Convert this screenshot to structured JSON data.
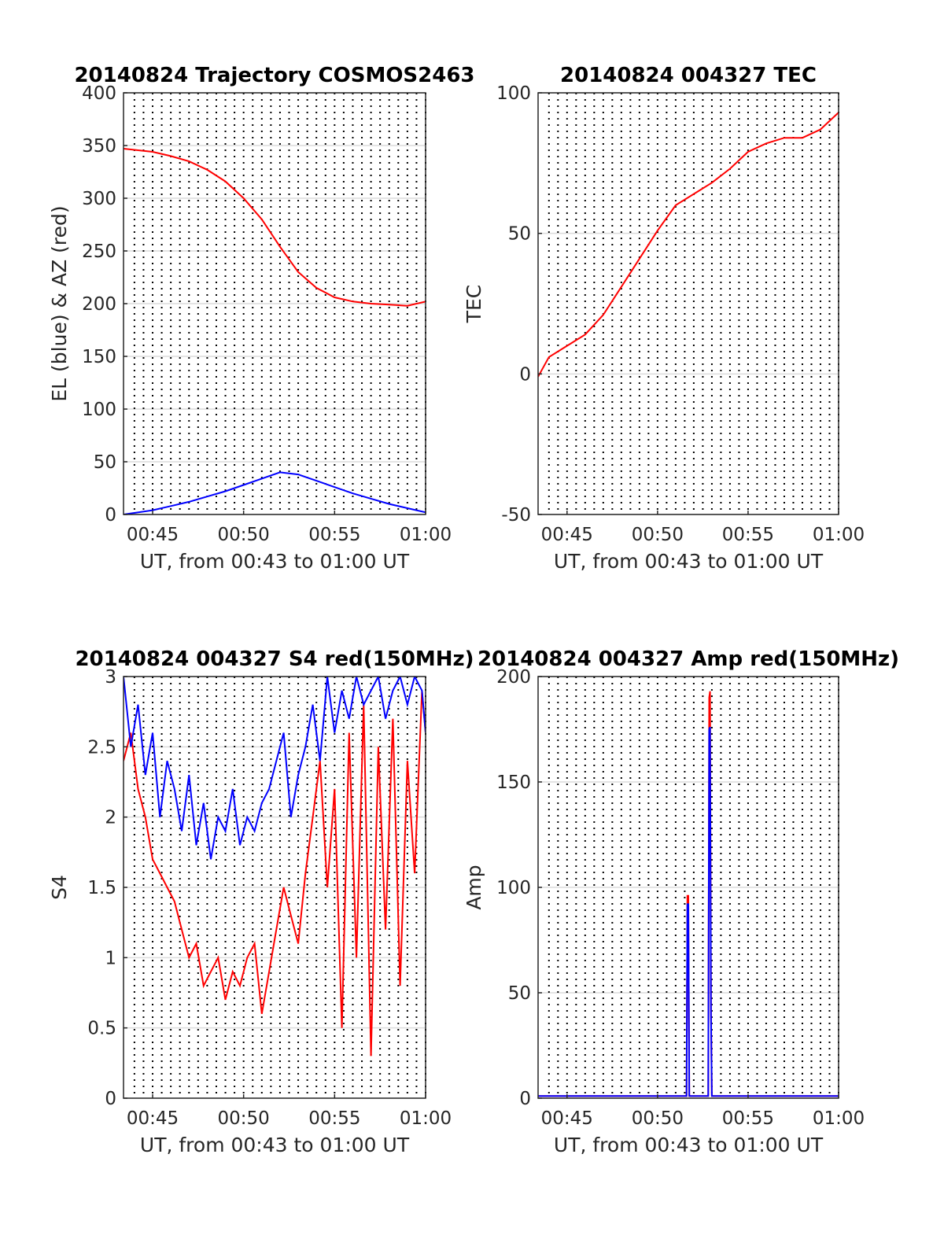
{
  "chart_data": [
    {
      "type": "line",
      "title": "20140824 Trajectory COSMOS2463",
      "xlabel": "UT, from 00:43 to 01:00 UT",
      "ylabel": "EL (blue) & AZ (red)",
      "xlim": [
        43.4,
        60.0
      ],
      "ylim": [
        0,
        400
      ],
      "xticks": [
        45,
        50,
        55,
        60
      ],
      "xtick_labels": [
        "00:45",
        "00:50",
        "00:55",
        "01:00"
      ],
      "yticks": [
        0,
        50,
        100,
        150,
        200,
        250,
        300,
        350,
        400
      ],
      "ytick_labels": [
        "0",
        "50",
        "100",
        "150",
        "200",
        "250",
        "300",
        "350",
        "400"
      ],
      "grid": true,
      "series": [
        {
          "color": "#ff0000",
          "x": [
            43.4,
            45,
            46,
            47,
            48,
            49,
            50,
            51,
            52,
            53,
            54,
            55,
            56,
            57,
            58,
            59,
            60
          ],
          "y": [
            347,
            344,
            340,
            335,
            327,
            316,
            300,
            280,
            254,
            230,
            215,
            206,
            202,
            200,
            199,
            198,
            202
          ]
        },
        {
          "color": "#0000ff",
          "x": [
            43.4,
            45,
            46,
            47,
            48,
            49,
            50,
            51,
            52,
            53,
            54,
            55,
            56,
            57,
            58,
            59,
            60
          ],
          "y": [
            0,
            4,
            8,
            12,
            17,
            22,
            28,
            34,
            40,
            38,
            32,
            26,
            20,
            15,
            10,
            6,
            2
          ]
        }
      ]
    },
    {
      "type": "line",
      "title": "20140824 004327 TEC",
      "xlabel": "UT, from 00:43 to 01:00 UT",
      "ylabel": "TEC",
      "xlim": [
        43.4,
        60.0
      ],
      "ylim": [
        -50,
        100
      ],
      "xticks": [
        45,
        50,
        55,
        60
      ],
      "xtick_labels": [
        "00:45",
        "00:50",
        "00:55",
        "01:00"
      ],
      "yticks": [
        -50,
        0,
        50,
        100
      ],
      "ytick_labels": [
        "-50",
        "0",
        "50",
        "100"
      ],
      "grid": true,
      "series": [
        {
          "color": "#ff0000",
          "x": [
            43.4,
            44,
            45,
            46,
            47,
            48,
            49,
            50,
            51,
            52,
            53,
            54,
            55,
            56,
            57,
            58,
            59,
            60
          ],
          "y": [
            -1,
            6,
            10,
            14,
            21,
            31,
            41,
            51,
            60,
            64,
            68,
            73,
            79,
            82,
            84,
            84,
            87,
            93
          ]
        }
      ]
    },
    {
      "type": "line",
      "title": "20140824 004327 S4 red(150MHz)",
      "xlabel": "UT, from 00:43 to 01:00 UT",
      "ylabel": "S4",
      "xlim": [
        43.4,
        60.0
      ],
      "ylim": [
        0,
        3
      ],
      "xticks": [
        45,
        50,
        55,
        60
      ],
      "xtick_labels": [
        "00:45",
        "00:50",
        "00:55",
        "01:00"
      ],
      "yticks": [
        0,
        0.5,
        1,
        1.5,
        2,
        2.5,
        3
      ],
      "ytick_labels": [
        "0",
        "0.5",
        "1",
        "1.5",
        "2",
        "2.5",
        "3"
      ],
      "grid": true,
      "series": [
        {
          "color": "#ff0000",
          "x": [
            43.4,
            43.8,
            44.2,
            44.6,
            45,
            45.4,
            45.8,
            46.2,
            46.6,
            47,
            47.4,
            47.8,
            48.2,
            48.6,
            49,
            49.4,
            49.8,
            50.2,
            50.6,
            51,
            51.4,
            51.8,
            52.2,
            52.6,
            53,
            53.4,
            53.8,
            54.2,
            54.6,
            55,
            55.4,
            55.8,
            56.2,
            56.6,
            57,
            57.4,
            57.8,
            58.2,
            58.6,
            59,
            59.4,
            59.8,
            60
          ],
          "y": [
            2.4,
            2.6,
            2.2,
            2.0,
            1.7,
            1.6,
            1.5,
            1.4,
            1.2,
            1.0,
            1.1,
            0.8,
            0.9,
            1.0,
            0.7,
            0.9,
            0.8,
            1.0,
            1.1,
            0.6,
            0.9,
            1.2,
            1.5,
            1.3,
            1.1,
            1.6,
            2.0,
            2.4,
            1.5,
            2.2,
            0.5,
            2.6,
            1.0,
            2.8,
            0.3,
            2.5,
            1.2,
            2.7,
            0.8,
            2.4,
            1.6,
            2.9,
            2.6
          ]
        },
        {
          "color": "#0000ff",
          "x": [
            43.4,
            43.8,
            44.2,
            44.6,
            45,
            45.4,
            45.8,
            46.2,
            46.6,
            47,
            47.4,
            47.8,
            48.2,
            48.6,
            49,
            49.4,
            49.8,
            50.2,
            50.6,
            51,
            51.4,
            51.8,
            52.2,
            52.6,
            53,
            53.4,
            53.8,
            54.2,
            54.6,
            55,
            55.4,
            55.8,
            56.2,
            56.6,
            57,
            57.4,
            57.8,
            58.2,
            58.6,
            59,
            59.4,
            59.8,
            60
          ],
          "y": [
            3.0,
            2.5,
            2.8,
            2.3,
            2.6,
            2.0,
            2.4,
            2.2,
            1.9,
            2.3,
            1.8,
            2.1,
            1.7,
            2.0,
            1.9,
            2.2,
            1.8,
            2.0,
            1.9,
            2.1,
            2.2,
            2.4,
            2.6,
            2.0,
            2.3,
            2.5,
            2.8,
            2.4,
            3.0,
            2.6,
            2.9,
            2.7,
            3.0,
            2.8,
            2.9,
            3.0,
            2.7,
            2.9,
            3.0,
            2.8,
            3.0,
            2.9,
            2.6
          ]
        }
      ]
    },
    {
      "type": "line",
      "title": "20140824 004327 Amp red(150MHz)",
      "xlabel": "UT, from 00:43 to 01:00 UT",
      "ylabel": "Amp",
      "xlim": [
        43.4,
        60.0
      ],
      "ylim": [
        0,
        200
      ],
      "xticks": [
        45,
        50,
        55,
        60
      ],
      "xtick_labels": [
        "00:45",
        "00:50",
        "00:55",
        "01:00"
      ],
      "yticks": [
        0,
        50,
        100,
        150,
        200
      ],
      "ytick_labels": [
        "0",
        "50",
        "100",
        "150",
        "200"
      ],
      "grid": true,
      "series": [
        {
          "color": "#ff0000",
          "x": [
            43.4,
            51.6,
            51.65,
            51.7,
            51.75,
            52.8,
            52.85,
            52.9,
            52.95,
            53.0,
            60
          ],
          "y": [
            1,
            1,
            96,
            96,
            1,
            1,
            190,
            193,
            40,
            1,
            1
          ]
        },
        {
          "color": "#0000ff",
          "x": [
            43.4,
            51.6,
            51.65,
            51.7,
            51.75,
            52.8,
            52.85,
            52.9,
            52.95,
            53.0,
            60
          ],
          "y": [
            1,
            1,
            92,
            92,
            1,
            1,
            175,
            176,
            40,
            1,
            1
          ]
        }
      ]
    }
  ]
}
